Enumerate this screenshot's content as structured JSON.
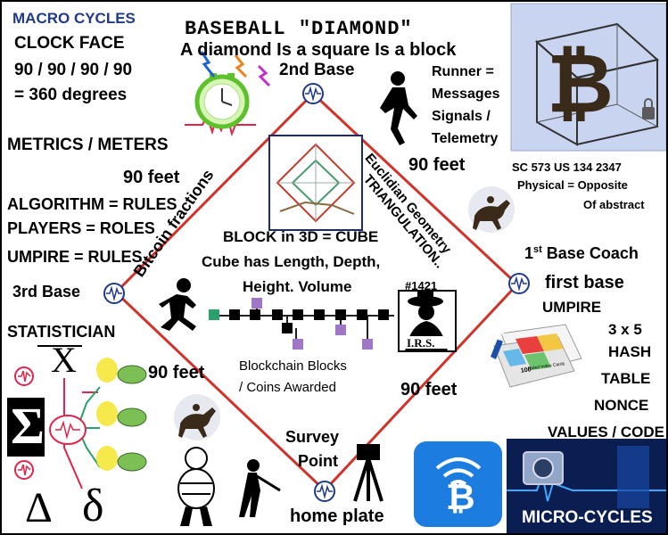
{
  "left_panel": {
    "macro_cycles": "MACRO CYCLES",
    "clock_face": "CLOCK FACE",
    "degrees_line1": "90 / 90 / 90 / 90",
    "degrees_line2": "= 360 degrees",
    "metrics": "METRICS / METERS",
    "algorithm": "ALGORITHM = RULES",
    "players": "PLAYERS = ROLES",
    "umpire": "UMPIRE = RULES",
    "statistician": "STATISTICIAN"
  },
  "header": {
    "title": "BASEBALL \"DIAMOND\"",
    "subtitle": "A diamond Is a square Is a block"
  },
  "bases": {
    "second": "2nd Base",
    "third": "3rd Base",
    "first": "first base",
    "home": "home plate"
  },
  "distances": {
    "top_left": "90 feet",
    "top_right": "90 feet",
    "bottom_left": "90 feet",
    "bottom_right": "90 feet"
  },
  "runner": {
    "line1": "Runner =",
    "line2": "Messages",
    "line3": "Signals /",
    "line4": "Telemetry"
  },
  "sc_code": {
    "line1": "SC 573 US 134 2347",
    "line2": "Physical  = Opposite",
    "line3": "Of abstract"
  },
  "diamond_edges": {
    "left": "Bitcoin fractions",
    "right_line1": "Euclidian Geometry",
    "right_line2": "TRIANGULATION.."
  },
  "center": {
    "line1": "BLOCK in 3D = CUBE",
    "line2": "Cube has Length, Depth,",
    "line3": "Height. Volume",
    "number": "#1421",
    "irs": "I.R.S.",
    "blockchain_line1": "Blockchain  Blocks",
    "blockchain_line2": "/ Coins Awarded"
  },
  "right_panel": {
    "base_coach_num": "1",
    "base_coach_sup": "st",
    "base_coach_rest": " Base Coach",
    "umpire": "UMPIRE",
    "hash_line1": "3 x 5",
    "hash_line2": "HASH",
    "hash_line3": "TABLE",
    "hash_line4": "NONCE",
    "hash_line5": "VALUES / CODE",
    "card_brand": "Oxford",
    "card_sub": "Ruled Index Cards",
    "card_count": "100"
  },
  "bottom": {
    "survey_line1": "Survey",
    "survey_line2": "Point",
    "micro_cycles": "MICRO-CYCLES"
  },
  "greek": {
    "sigma": "Σ",
    "delta_upper": "Δ",
    "delta_lower": "δ",
    "x_bar": "X",
    "bitcoin": "₿"
  },
  "colors": {
    "diamond_line": "#d3322b",
    "macro_text": "#1f3a8a",
    "app_tile": "#1c7ce0",
    "micro_tile": "#0b1e52"
  }
}
